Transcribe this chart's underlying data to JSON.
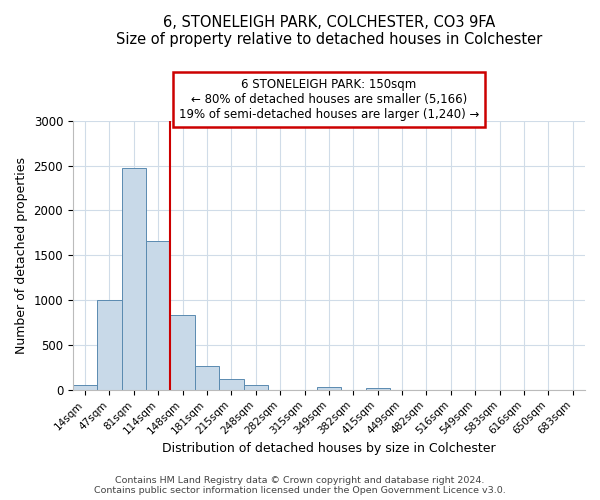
{
  "title": "6, STONELEIGH PARK, COLCHESTER, CO3 9FA",
  "subtitle": "Size of property relative to detached houses in Colchester",
  "xlabel": "Distribution of detached houses by size in Colchester",
  "ylabel": "Number of detached properties",
  "bar_labels": [
    "14sqm",
    "47sqm",
    "81sqm",
    "114sqm",
    "148sqm",
    "181sqm",
    "215sqm",
    "248sqm",
    "282sqm",
    "315sqm",
    "349sqm",
    "382sqm",
    "415sqm",
    "449sqm",
    "482sqm",
    "516sqm",
    "549sqm",
    "583sqm",
    "616sqm",
    "650sqm",
    "683sqm"
  ],
  "bar_values": [
    55,
    1000,
    2470,
    1660,
    840,
    270,
    120,
    55,
    0,
    0,
    35,
    0,
    20,
    0,
    0,
    0,
    0,
    0,
    0,
    0,
    0
  ],
  "bar_color": "#c8d9e8",
  "bar_edge_color": "#5a8ab0",
  "vline_color": "#cc0000",
  "annotation_line1": "6 STONELEIGH PARK: 150sqm",
  "annotation_line2": "← 80% of detached houses are smaller (5,166)",
  "annotation_line3": "19% of semi-detached houses are larger (1,240) →",
  "annotation_box_color": "#cc0000",
  "ylim": [
    0,
    3000
  ],
  "yticks": [
    0,
    500,
    1000,
    1500,
    2000,
    2500,
    3000
  ],
  "footer1": "Contains HM Land Registry data © Crown copyright and database right 2024.",
  "footer2": "Contains public sector information licensed under the Open Government Licence v3.0.",
  "bg_color": "#ffffff",
  "grid_color": "#d0dce8"
}
